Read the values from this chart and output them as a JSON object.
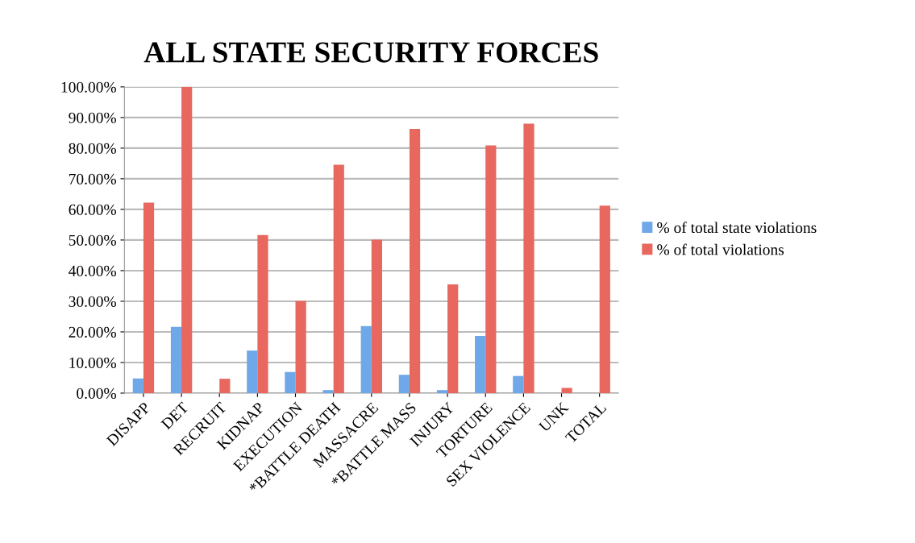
{
  "chart_data": {
    "type": "bar",
    "title": "ALL STATE SECURITY FORCES",
    "categories": [
      "DISAPP",
      "DET",
      "RECRUIT",
      "KIDNAP",
      "EXECUTION",
      "*BATTLE DEATH",
      "MASSACRE",
      "*BATTLE MASS",
      "INJURY",
      "TORTURE",
      "SEX VIOLENCE",
      "UNK",
      "TOTAL"
    ],
    "series": [
      {
        "name": "% of total state violations",
        "color": "#6fa8e8",
        "values": [
          4.8,
          21.6,
          0,
          13.9,
          6.9,
          1.0,
          21.9,
          6.0,
          1.0,
          18.7,
          5.6,
          0,
          0
        ]
      },
      {
        "name": "% of total violations",
        "color": "#e8675f",
        "values": [
          62.2,
          100,
          4.7,
          51.6,
          30.1,
          74.6,
          50.1,
          86.3,
          35.5,
          80.9,
          88.0,
          1.7,
          61.2
        ]
      }
    ],
    "ylim": [
      0,
      100
    ],
    "yticks": [
      {
        "value": 0,
        "label": "0.00%"
      },
      {
        "value": 10,
        "label": "10.00%"
      },
      {
        "value": 20,
        "label": "20.00%"
      },
      {
        "value": 30,
        "label": "30.00%"
      },
      {
        "value": 40,
        "label": "40.00%"
      },
      {
        "value": 50,
        "label": "50.00%"
      },
      {
        "value": 60,
        "label": "60.00%"
      },
      {
        "value": 70,
        "label": "70.00%"
      },
      {
        "value": 80,
        "label": "80.00%"
      },
      {
        "value": 90,
        "label": "90.00%"
      },
      {
        "value": 100,
        "label": "100.00%"
      }
    ],
    "grid": "y",
    "legend": "right"
  }
}
